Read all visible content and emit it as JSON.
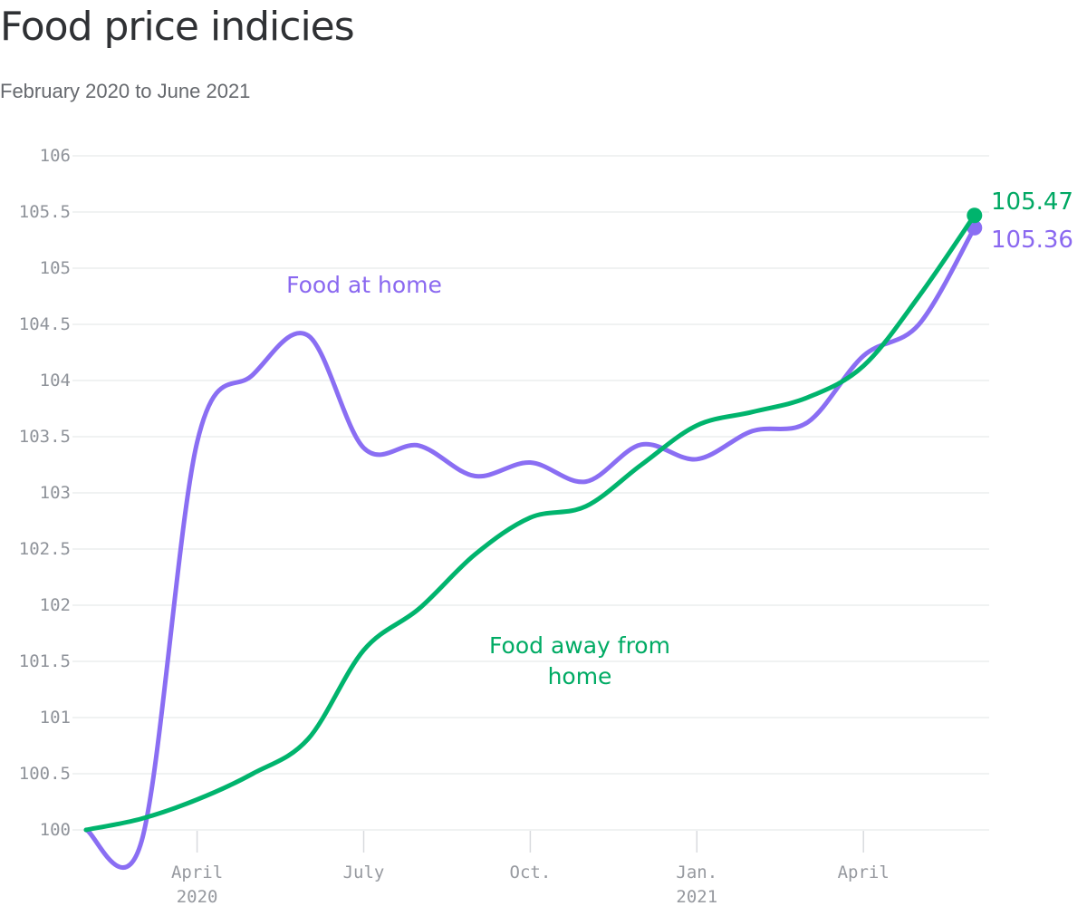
{
  "header": {
    "title": "Food price indicies",
    "subtitle": "February 2020 to June 2021"
  },
  "colors": {
    "food_at_home_line": "#8a6ef3",
    "food_away_line": "#00b46d",
    "gridline": "#e8e9eb",
    "axis_tick": "#d8dade",
    "y_axis_text": "#8f939a",
    "x_axis_text": "#96999f"
  },
  "chart_data": {
    "type": "line",
    "title": "Food price indicies",
    "subtitle": "February 2020 to June 2021",
    "x_months": [
      "2020-02",
      "2020-03",
      "2020-04",
      "2020-05",
      "2020-06",
      "2020-07",
      "2020-08",
      "2020-09",
      "2020-10",
      "2020-11",
      "2020-12",
      "2021-01",
      "2021-02",
      "2021-03",
      "2021-04",
      "2021-05",
      "2021-06"
    ],
    "ylim": [
      100,
      106
    ],
    "ytick_labels": [
      "100",
      "100.5",
      "101",
      "101.5",
      "102",
      "102.5",
      "103",
      "103.5",
      "104",
      "104.5",
      "105",
      "105.5",
      "106"
    ],
    "xticks": [
      {
        "label": "April",
        "sublabel": "2020",
        "month_index": 2
      },
      {
        "label": "July",
        "sublabel": "",
        "month_index": 5
      },
      {
        "label": "Oct.",
        "sublabel": "",
        "month_index": 8
      },
      {
        "label": "Jan.",
        "sublabel": "2021",
        "month_index": 11
      },
      {
        "label": "April",
        "sublabel": "",
        "month_index": 14
      }
    ],
    "grid": "horizontal-only",
    "legend_position": "inline-annotations",
    "series": [
      {
        "name": "Food at home",
        "color": "#8a6ef3",
        "end_label": "105.36",
        "values": [
          100,
          99.9,
          103.45,
          104.05,
          104.4,
          103.4,
          103.42,
          103.15,
          103.27,
          103.1,
          103.43,
          103.3,
          103.55,
          103.63,
          104.22,
          104.5,
          105.36
        ]
      },
      {
        "name": "Food away from home",
        "color": "#00b46d",
        "end_label": "105.47",
        "values": [
          100,
          100.1,
          100.27,
          100.5,
          100.81,
          101.6,
          101.97,
          102.45,
          102.78,
          102.88,
          103.25,
          103.6,
          103.72,
          103.85,
          104.13,
          104.75,
          105.47
        ]
      }
    ],
    "annotations": {
      "food_at_home": {
        "text": "Food at home"
      },
      "food_away_from_home": {
        "line1": "Food away from",
        "line2": "home"
      }
    }
  }
}
